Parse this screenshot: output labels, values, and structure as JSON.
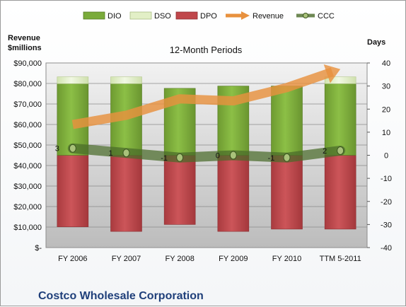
{
  "chart_data": {
    "type": "bar",
    "title": "12-Month Periods",
    "footer_title": "Costco Wholesale Corporation",
    "left_axis_label": [
      "Revenue",
      "$millions"
    ],
    "right_axis_label": "Days",
    "categories": [
      "FY 2006",
      "FY 2007",
      "FY 2008",
      "FY 2009",
      "FY 2010",
      "TTM 5-2011"
    ],
    "left_axis": {
      "min": 0,
      "max": 90000,
      "ticks": [
        "$-",
        "$10,000",
        "$20,000",
        "$30,000",
        "$40,000",
        "$50,000",
        "$60,000",
        "$70,000",
        "$80,000",
        "$90,000"
      ]
    },
    "right_axis": {
      "min": -40,
      "max": 40,
      "ticks": [
        "-40",
        "-30",
        "-20",
        "-10",
        "0",
        "10",
        "20",
        "30",
        "40"
      ]
    },
    "series": [
      {
        "name": "DIO",
        "type": "bar",
        "axis": "right",
        "color": "#7aab3a",
        "values": [
          31,
          31,
          29,
          30,
          30,
          31
        ]
      },
      {
        "name": "DSO",
        "type": "bar",
        "axis": "right",
        "color": "#e2efc6",
        "values": [
          3,
          3,
          0,
          0,
          0,
          3
        ]
      },
      {
        "name": "DPO",
        "type": "bar",
        "axis": "right",
        "color": "#c0474b",
        "values": [
          -31,
          -33,
          -30,
          -33,
          -32,
          -32
        ]
      },
      {
        "name": "Revenue",
        "type": "arrow-line",
        "axis": "left",
        "color": "#e8913e",
        "values": [
          60000,
          64500,
          72500,
          71500,
          78000,
          87000
        ]
      },
      {
        "name": "CCC",
        "type": "line",
        "axis": "right",
        "color": "#4a6b2a",
        "values": [
          3,
          1,
          -1,
          0,
          -1,
          2
        ]
      }
    ],
    "data_labels": [
      "3",
      "1",
      "-1",
      "0",
      "-1",
      "2"
    ],
    "legend": [
      "DIO",
      "DSO",
      "DPO",
      "Revenue",
      "CCC"
    ],
    "legend_position": "top",
    "grid": true
  }
}
